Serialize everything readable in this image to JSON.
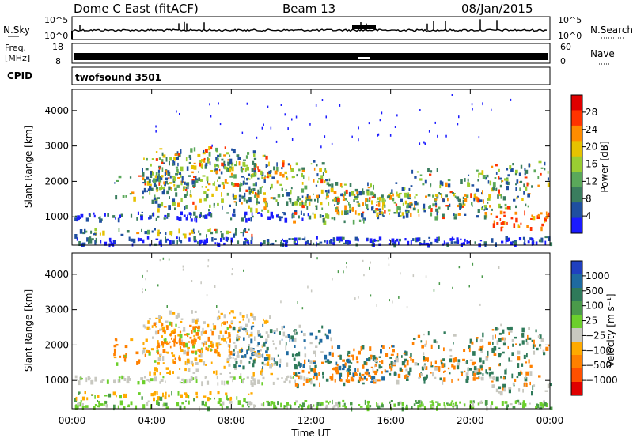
{
  "header": {
    "title": "Dome C East (fitACF)",
    "beam": "Beam 13",
    "date": "08/Jan/2015"
  },
  "top_panels": {
    "nsky": {
      "label": "N.Sky",
      "tick_top": "10^5",
      "tick_bottom": "10^0"
    },
    "nsearch": {
      "label": "N.Search",
      "tick_top": "10^5",
      "tick_bottom": "10^0"
    },
    "freq": {
      "label": "Freq.",
      "unit": "[MHz]",
      "tick_top": "18",
      "tick_bottom": "8"
    },
    "nave": {
      "label": "Nave",
      "tick_top": "60",
      "tick_bottom": "0"
    },
    "cpid": {
      "label": "CPID",
      "value": "twofsound 3501"
    }
  },
  "chart_data": [
    {
      "type": "heatmap",
      "name": "power",
      "xlabel": "",
      "ylabel": "Slant Range [km]",
      "ylim": [
        200,
        4600
      ],
      "yticks": [
        "1000",
        "2000",
        "3000",
        "4000"
      ],
      "xlim": [
        "00:00",
        "24:00"
      ],
      "colorbar": {
        "label": "Power [dB]",
        "ticks": [
          "4",
          "8",
          "12",
          "16",
          "20",
          "24",
          "28"
        ],
        "colors": [
          "#1a1aff",
          "#1f4fa0",
          "#3a7d5e",
          "#5aa85a",
          "#9acd32",
          "#e6c200",
          "#ff8c00",
          "#ff3300",
          "#e00000"
        ]
      },
      "grid": false
    },
    {
      "type": "heatmap",
      "name": "velocity",
      "xlabel": "Time UT",
      "ylabel": "Slant Range [km]",
      "ylim": [
        200,
        4600
      ],
      "yticks": [
        "1000",
        "2000",
        "3000",
        "4000"
      ],
      "xticks": [
        "00:00",
        "04:00",
        "08:00",
        "12:00",
        "16:00",
        "20:00",
        "00:00"
      ],
      "colorbar": {
        "label": "Velocity [m s⁻¹]",
        "ticks": [
          "1000",
          "500",
          "100",
          "25",
          "−25",
          "−100",
          "−500",
          "−1000"
        ],
        "colors": [
          "#2040c0",
          "#1e6aa0",
          "#2f7a5a",
          "#4a9a4a",
          "#6ccf2c",
          "#c8c8c0",
          "#ffaa00",
          "#ff8000",
          "#ff5000",
          "#e00000"
        ]
      },
      "grid": false
    }
  ]
}
